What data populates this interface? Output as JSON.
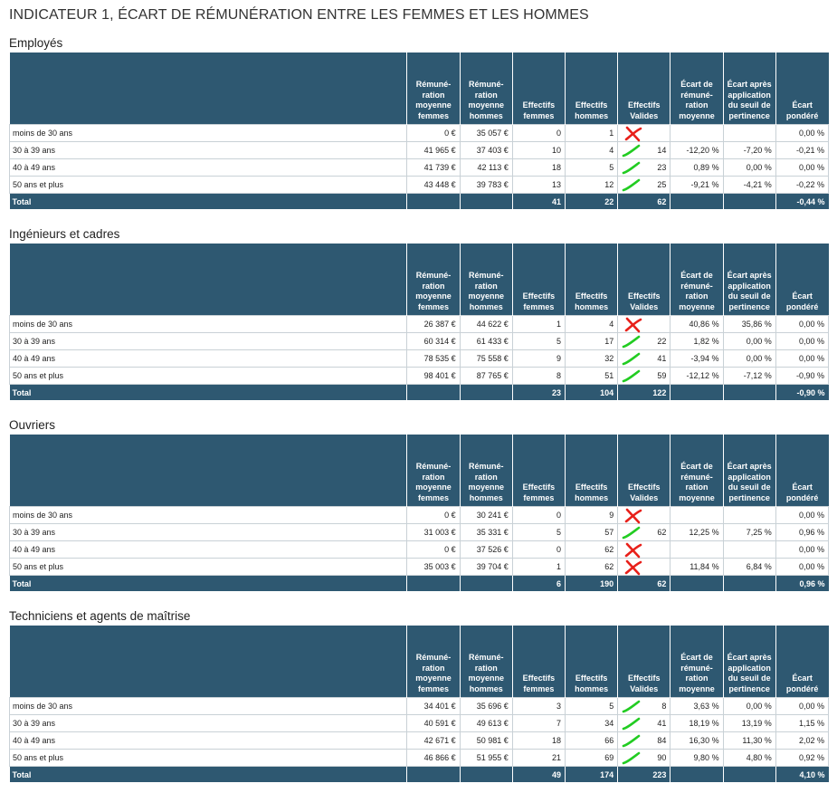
{
  "title": "INDICATEUR 1, ÉCART DE RÉMUNÉRATION ENTRE LES FEMMES ET LES HOMMES",
  "headers": [
    "",
    "Rémuné-ration moyenne femmes",
    "Rémuné-ration moyenne hommes",
    "Effectifs femmes",
    "Effectifs hommes",
    "Effectifs Valides",
    "Écart de rémuné-ration moyenne",
    "Écart après application du seuil de pertinence",
    "Écart pondéré"
  ],
  "sections": [
    {
      "title": "Employés",
      "rows": [
        {
          "label": "moins de 30 ans",
          "rem_f": "0 €",
          "rem_h": "35 057 €",
          "eff_f": "0",
          "eff_h": "1",
          "mark": "cross",
          "valides": "",
          "ecart": "",
          "ecart_seuil": "",
          "pondere": "0,00 %"
        },
        {
          "label": "30 à 39 ans",
          "rem_f": "41 965 €",
          "rem_h": "37 403 €",
          "eff_f": "10",
          "eff_h": "4",
          "mark": "check",
          "valides": "14",
          "ecart": "-12,20 %",
          "ecart_seuil": "-7,20 %",
          "pondere": "-0,21 %"
        },
        {
          "label": "40 à 49 ans",
          "rem_f": "41 739 €",
          "rem_h": "42 113 €",
          "eff_f": "18",
          "eff_h": "5",
          "mark": "check",
          "valides": "23",
          "ecart": "0,89 %",
          "ecart_seuil": "0,00 %",
          "pondere": "0,00 %"
        },
        {
          "label": "50 ans et plus",
          "rem_f": "43 448 €",
          "rem_h": "39 783 €",
          "eff_f": "13",
          "eff_h": "12",
          "mark": "check",
          "valides": "25",
          "ecart": "-9,21 %",
          "ecart_seuil": "-4,21 %",
          "pondere": "-0,22 %"
        }
      ],
      "total": {
        "label": "Total",
        "eff_f": "41",
        "eff_h": "22",
        "valides": "62",
        "pondere": "-0,44 %"
      }
    },
    {
      "title": "Ingénieurs et cadres",
      "rows": [
        {
          "label": "moins de 30 ans",
          "rem_f": "26 387 €",
          "rem_h": "44 622 €",
          "eff_f": "1",
          "eff_h": "4",
          "mark": "cross",
          "valides": "",
          "ecart": "40,86 %",
          "ecart_seuil": "35,86 %",
          "pondere": "0,00 %"
        },
        {
          "label": "30 à 39 ans",
          "rem_f": "60 314 €",
          "rem_h": "61 433 €",
          "eff_f": "5",
          "eff_h": "17",
          "mark": "check",
          "valides": "22",
          "ecart": "1,82 %",
          "ecart_seuil": "0,00 %",
          "pondere": "0,00 %"
        },
        {
          "label": "40 à 49 ans",
          "rem_f": "78 535 €",
          "rem_h": "75 558 €",
          "eff_f": "9",
          "eff_h": "32",
          "mark": "check",
          "valides": "41",
          "ecart": "-3,94 %",
          "ecart_seuil": "0,00 %",
          "pondere": "0,00 %"
        },
        {
          "label": "50 ans et plus",
          "rem_f": "98 401 €",
          "rem_h": "87 765 €",
          "eff_f": "8",
          "eff_h": "51",
          "mark": "check",
          "valides": "59",
          "ecart": "-12,12 %",
          "ecart_seuil": "-7,12 %",
          "pondere": "-0,90 %"
        }
      ],
      "total": {
        "label": "Total",
        "eff_f": "23",
        "eff_h": "104",
        "valides": "122",
        "pondere": "-0,90 %"
      }
    },
    {
      "title": "Ouvriers",
      "rows": [
        {
          "label": "moins de 30 ans",
          "rem_f": "0 €",
          "rem_h": "30 241 €",
          "eff_f": "0",
          "eff_h": "9",
          "mark": "cross",
          "valides": "",
          "ecart": "",
          "ecart_seuil": "",
          "pondere": "0,00 %"
        },
        {
          "label": "30 à 39 ans",
          "rem_f": "31 003 €",
          "rem_h": "35 331 €",
          "eff_f": "5",
          "eff_h": "57",
          "mark": "check",
          "valides": "62",
          "ecart": "12,25 %",
          "ecart_seuil": "7,25 %",
          "pondere": "0,96 %"
        },
        {
          "label": "40 à 49 ans",
          "rem_f": "0 €",
          "rem_h": "37 526 €",
          "eff_f": "0",
          "eff_h": "62",
          "mark": "cross",
          "valides": "",
          "ecart": "",
          "ecart_seuil": "",
          "pondere": "0,00 %"
        },
        {
          "label": "50 ans et plus",
          "rem_f": "35 003 €",
          "rem_h": "39 704 €",
          "eff_f": "1",
          "eff_h": "62",
          "mark": "cross",
          "valides": "",
          "ecart": "11,84 %",
          "ecart_seuil": "6,84 %",
          "pondere": "0,00 %"
        }
      ],
      "total": {
        "label": "Total",
        "eff_f": "6",
        "eff_h": "190",
        "valides": "62",
        "pondere": "0,96 %"
      }
    },
    {
      "title": "Techniciens et agents de maîtrise",
      "rows": [
        {
          "label": "moins de 30 ans",
          "rem_f": "34 401 €",
          "rem_h": "35 696 €",
          "eff_f": "3",
          "eff_h": "5",
          "mark": "check",
          "valides": "8",
          "ecart": "3,63 %",
          "ecart_seuil": "0,00 %",
          "pondere": "0,00 %"
        },
        {
          "label": "30 à 39 ans",
          "rem_f": "40 591 €",
          "rem_h": "49 613 €",
          "eff_f": "7",
          "eff_h": "34",
          "mark": "check",
          "valides": "41",
          "ecart": "18,19 %",
          "ecart_seuil": "13,19 %",
          "pondere": "1,15 %"
        },
        {
          "label": "40 à 49 ans",
          "rem_f": "42 671 €",
          "rem_h": "50 981 €",
          "eff_f": "18",
          "eff_h": "66",
          "mark": "check",
          "valides": "84",
          "ecart": "16,30 %",
          "ecart_seuil": "11,30 %",
          "pondere": "2,02 %"
        },
        {
          "label": "50 ans et plus",
          "rem_f": "46 866 €",
          "rem_h": "51 955 €",
          "eff_f": "21",
          "eff_h": "69",
          "mark": "check",
          "valides": "90",
          "ecart": "9,80 %",
          "ecart_seuil": "4,80 %",
          "pondere": "0,92 %"
        }
      ],
      "total": {
        "label": "Total",
        "eff_f": "49",
        "eff_h": "174",
        "valides": "223",
        "pondere": "4,10 %"
      }
    }
  ],
  "colors": {
    "header": "#2e5871",
    "check": "#22cc22",
    "cross": "#e8201a"
  }
}
